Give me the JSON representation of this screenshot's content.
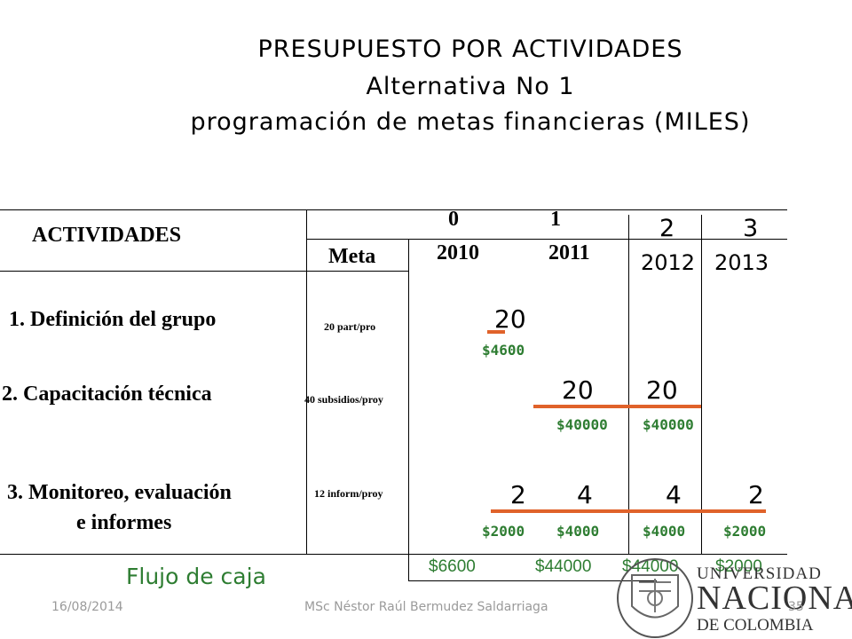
{
  "title": {
    "line1": "PRESUPUESTO POR ACTIVIDADES",
    "line2": "Alternativa No 1",
    "line3": "programación de metas financieras (MILES)"
  },
  "table": {
    "header_activities": "ACTIVIDADES",
    "header_meta": "Meta",
    "periods": [
      {
        "index": "0",
        "year": "2010"
      },
      {
        "index": "1",
        "year": "2011"
      },
      {
        "index": "2",
        "year": "2012"
      },
      {
        "index": "3",
        "year": "2013"
      }
    ],
    "rows": [
      {
        "activity": "1. Definición del grupo",
        "meta": "20 part/pro",
        "goals": [
          "20"
        ],
        "costs": [
          "$4600"
        ]
      },
      {
        "activity": "2. Capacitación técnica",
        "meta": "40 subsidios/proy",
        "goals": [
          "20",
          "20"
        ],
        "costs": [
          "$40000",
          "$40000"
        ]
      },
      {
        "activity_line1": "3. Monitoreo, evaluación",
        "activity_line2": "e informes",
        "meta": "12 inform/proy",
        "goals": [
          "2",
          "4",
          "4",
          "2"
        ],
        "costs": [
          "$2000",
          "$4000",
          "$4000",
          "$2000"
        ]
      }
    ],
    "cash_flow_label": "Flujo de caja",
    "cash_flow": [
      "$6600",
      "$44000",
      "$44000",
      "$2000"
    ]
  },
  "logo": {
    "line1": "UNIVERSIDAD",
    "line2": "NACIONAL",
    "line3": "DE COLOMBIA"
  },
  "footer": {
    "date": "16/08/2014",
    "author": "MSc Néstor Raúl Bermudez Saldarriaga",
    "page": "35"
  },
  "colors": {
    "money": "#2e7d32",
    "bar": "#e0622a",
    "footer": "#9a9a9a"
  }
}
